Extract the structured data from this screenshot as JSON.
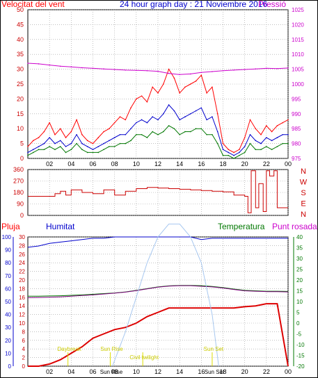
{
  "header": {
    "wind_label": "Velocitat del vent",
    "title": "24 hour graph day : 21 Noviembre 2016",
    "pressure_label": "Pressió"
  },
  "lower_header": {
    "rain_label": "Pluja",
    "humidity_label": "Humitat",
    "temperature_label": "Temperatura",
    "dewpoint_label": "Punt rosada"
  },
  "colors": {
    "wind": "#ff0000",
    "wind_avg": "#0000cc",
    "wind_low": "#007700",
    "pressure": "#cc00cc",
    "direction": "#cc0000",
    "humidity": "#0000cc",
    "temperature": "#007700",
    "dewpoint": "#800080",
    "rain": "#dd0000",
    "solar": "#a8c8f0",
    "annotations": "#dddd00"
  },
  "chart_data": [
    {
      "type": "line",
      "title": "24 hour graph day : 21 Noviembre 2016",
      "x_ticks": [
        "02",
        "04",
        "06",
        "08",
        "10",
        "12",
        "14",
        "16",
        "18",
        "20",
        "22",
        "00"
      ],
      "x_range": [
        0,
        24
      ],
      "y_left_ticks": [
        "0",
        "5",
        "10",
        "15",
        "20",
        "25",
        "30",
        "35",
        "40",
        "45",
        "50"
      ],
      "y_left_range": [
        0,
        50
      ],
      "y_left_label": "Velocitat del vent",
      "y_right_ticks": [
        "975",
        "980",
        "985",
        "990",
        "995",
        "1000",
        "1005",
        "1010",
        "1015",
        "1020",
        "1025"
      ],
      "y_right_range": [
        975,
        1025
      ],
      "y_right_label": "Pressió",
      "grid": true,
      "series": [
        {
          "name": "Velocitat del vent (ratxa)",
          "x": [
            0,
            0.5,
            1,
            1.5,
            2,
            2.5,
            3,
            3.5,
            4,
            4.5,
            5,
            5.5,
            6,
            6.5,
            7,
            7.5,
            8,
            8.5,
            9,
            9.5,
            10,
            10.5,
            11,
            11.5,
            12,
            12.5,
            13,
            13.5,
            14,
            14.5,
            15,
            15.5,
            16,
            16.5,
            17,
            17.5,
            18,
            18.5,
            19,
            19.5,
            20,
            20.5,
            21,
            21.5,
            22,
            22.5,
            23,
            23.5,
            24
          ],
          "values": [
            4,
            6,
            7,
            9,
            12,
            8,
            10,
            7,
            9,
            13,
            8,
            6,
            5,
            7,
            9,
            10,
            12,
            14,
            13,
            17,
            20,
            21,
            19,
            24,
            22,
            25,
            30,
            27,
            22,
            24,
            25,
            26,
            28,
            22,
            24,
            15,
            5,
            3,
            2,
            3,
            7,
            13,
            10,
            8,
            11,
            9,
            11,
            12,
            13
          ]
        },
        {
          "name": "Velocitat del vent (mitjana)",
          "x": [
            0,
            0.5,
            1,
            1.5,
            2,
            2.5,
            3,
            3.5,
            4,
            4.5,
            5,
            5.5,
            6,
            6.5,
            7,
            7.5,
            8,
            8.5,
            9,
            9.5,
            10,
            10.5,
            11,
            11.5,
            12,
            12.5,
            13,
            13.5,
            14,
            14.5,
            15,
            15.5,
            16,
            16.5,
            17,
            17.5,
            18,
            18.5,
            19,
            19.5,
            20,
            20.5,
            21,
            21.5,
            22,
            22.5,
            23,
            23.5,
            24
          ],
          "values": [
            2,
            3,
            4,
            5,
            7,
            5,
            6,
            4,
            5,
            8,
            5,
            4,
            3,
            4,
            5,
            6,
            7,
            8,
            8,
            10,
            12,
            13,
            12,
            14,
            13,
            15,
            18,
            16,
            13,
            14,
            15,
            16,
            17,
            13,
            14,
            9,
            3,
            2,
            1,
            2,
            4,
            8,
            6,
            5,
            7,
            6,
            7,
            8,
            8
          ]
        },
        {
          "name": "Velocitat del vent (mínima)",
          "x": [
            0,
            0.5,
            1,
            1.5,
            2,
            2.5,
            3,
            3.5,
            4,
            4.5,
            5,
            5.5,
            6,
            6.5,
            7,
            7.5,
            8,
            8.5,
            9,
            9.5,
            10,
            10.5,
            11,
            11.5,
            12,
            12.5,
            13,
            13.5,
            14,
            14.5,
            15,
            15.5,
            16,
            16.5,
            17,
            17.5,
            18,
            18.5,
            19,
            19.5,
            20,
            20.5,
            21,
            21.5,
            22,
            22.5,
            23,
            23.5,
            24
          ],
          "values": [
            1,
            2,
            3,
            3,
            4,
            3,
            4,
            2,
            3,
            5,
            3,
            2,
            2,
            2,
            3,
            4,
            4,
            5,
            5,
            6,
            8,
            8,
            7,
            9,
            8,
            9,
            11,
            10,
            8,
            9,
            9,
            10,
            10,
            8,
            8,
            5,
            1,
            1,
            0,
            1,
            2,
            5,
            3,
            3,
            4,
            3,
            4,
            5,
            5
          ]
        },
        {
          "name": "Pressió",
          "axis": "right",
          "x": [
            0,
            1,
            2,
            3,
            4,
            5,
            6,
            7,
            8,
            9,
            10,
            11,
            12,
            13,
            14,
            15,
            16,
            17,
            18,
            19,
            20,
            21,
            22,
            23,
            24
          ],
          "values": [
            1007,
            1006.8,
            1006.4,
            1006,
            1005.8,
            1005.5,
            1005.3,
            1005.1,
            1004.9,
            1004.7,
            1004.6,
            1004.5,
            1004.3,
            1003.6,
            1003.2,
            1003.4,
            1003.9,
            1004.2,
            1004.5,
            1004.7,
            1004.9,
            1005.1,
            1005.3,
            1005.2,
            1005.4
          ]
        }
      ]
    },
    {
      "type": "line",
      "x_ticks": [
        "02",
        "04",
        "06",
        "08",
        "10",
        "12",
        "14",
        "16",
        "18",
        "20",
        "22",
        "00"
      ],
      "x_range": [
        0,
        24
      ],
      "y_left_ticks": [
        "0",
        "90",
        "180",
        "270",
        "360"
      ],
      "y_left_range": [
        0,
        360
      ],
      "y_right_ticks": [
        "N",
        "W",
        "S",
        "E",
        "N"
      ],
      "grid": true,
      "series": [
        {
          "name": "Direcció del vent",
          "x": [
            0,
            1,
            2,
            2.5,
            3,
            3.5,
            4,
            5,
            6,
            7,
            8,
            9,
            10,
            11,
            12,
            13,
            14,
            15,
            16,
            17,
            18,
            19,
            20,
            20.3,
            20.6,
            21,
            21.3,
            21.7,
            22,
            22.3,
            22.7,
            23,
            24
          ],
          "values": [
            150,
            150,
            150,
            170,
            190,
            160,
            200,
            180,
            170,
            200,
            160,
            190,
            210,
            220,
            215,
            210,
            205,
            200,
            195,
            190,
            185,
            160,
            150,
            20,
            350,
            60,
            250,
            30,
            350,
            310,
            350,
            60,
            60
          ]
        }
      ]
    },
    {
      "type": "line",
      "x_ticks": [
        "02",
        "04",
        "06",
        "08",
        "10",
        "12",
        "14",
        "16",
        "18",
        "20",
        "22",
        "00"
      ],
      "x_range": [
        0,
        24
      ],
      "y_left_ticks": [
        "0",
        "2",
        "4",
        "6",
        "8",
        "10",
        "12",
        "14",
        "16",
        "18",
        "20",
        "22",
        "24",
        "26",
        "28",
        "30"
      ],
      "y_left_range": [
        0,
        30
      ],
      "y_left_label": "Pluja",
      "y_blue_ticks": [
        "0",
        "10",
        "20",
        "30",
        "40",
        "50",
        "60",
        "70",
        "80",
        "90",
        "100"
      ],
      "y_blue_range": [
        0,
        100
      ],
      "y_blue_label": "Humitat",
      "y_right_ticks": [
        "-20",
        "-15",
        "-10",
        "-5",
        "0",
        "5",
        "10",
        "15",
        "20",
        "25",
        "30",
        "35",
        "40"
      ],
      "y_right_range": [
        -20,
        40
      ],
      "y_right_label": "Temperatura",
      "grid": true,
      "series": [
        {
          "name": "Pluja",
          "x": [
            0,
            1,
            2,
            3,
            4,
            5,
            6,
            7,
            8,
            9,
            10,
            11,
            12,
            13,
            14,
            15,
            16,
            17,
            18,
            19,
            20,
            21,
            22,
            23,
            24
          ],
          "values": [
            0,
            0,
            0.5,
            1.5,
            3,
            4.5,
            6.5,
            7.5,
            8.5,
            9,
            10,
            11.5,
            12.5,
            13.5,
            13.5,
            13.5,
            13.5,
            13.5,
            13.5,
            13.5,
            13.8,
            14,
            14.5,
            14.5,
            0
          ]
        },
        {
          "name": "Humitat",
          "x": [
            0,
            1,
            2,
            3,
            4,
            5,
            6,
            7,
            8,
            9,
            10,
            11,
            12,
            13,
            14,
            15,
            16,
            17,
            18,
            19,
            20,
            21,
            22,
            23,
            24
          ],
          "values": [
            92,
            93,
            95,
            96,
            97,
            98,
            99,
            99,
            100,
            100,
            100,
            100,
            100,
            100,
            100,
            100,
            98,
            99,
            99,
            99,
            99,
            99,
            99,
            99,
            99
          ]
        },
        {
          "name": "Temperatura",
          "x": [
            0,
            1,
            2,
            3,
            4,
            5,
            6,
            7,
            8,
            9,
            10,
            11,
            12,
            13,
            14,
            15,
            16,
            17,
            18,
            19,
            20,
            21,
            22,
            23,
            24
          ],
          "values": [
            12.5,
            12.5,
            12.6,
            12.7,
            12.9,
            13.1,
            13.4,
            13.7,
            14.0,
            14.5,
            15.2,
            16.0,
            16.8,
            17.3,
            17.5,
            17.5,
            17.4,
            17.0,
            16.5,
            15.8,
            15.2,
            15.0,
            14.8,
            14.8,
            14.7
          ]
        },
        {
          "name": "Punt rosada",
          "x": [
            0,
            1,
            2,
            3,
            4,
            5,
            6,
            7,
            8,
            9,
            10,
            11,
            12,
            13,
            14,
            15,
            16,
            17,
            18,
            19,
            20,
            21,
            22,
            23,
            24
          ],
          "values": [
            11.8,
            11.9,
            12.0,
            12.2,
            12.5,
            12.8,
            13.1,
            13.5,
            13.9,
            14.4,
            15.1,
            15.9,
            16.7,
            17.2,
            17.4,
            17.4,
            17.1,
            16.8,
            16.3,
            15.6,
            15.0,
            14.8,
            14.6,
            14.6,
            14.5
          ]
        },
        {
          "name": "Radiació solar",
          "x": [
            7.8,
            9,
            10,
            11,
            12,
            13,
            14,
            15,
            16,
            17,
            17.6
          ],
          "values": [
            0,
            8,
            16,
            24,
            30,
            33,
            33,
            30,
            24,
            12,
            0
          ]
        }
      ],
      "annotations": [
        {
          "label": "Daybreak",
          "x": 3.7
        },
        {
          "label": "Sun Rise",
          "x": 7.6
        },
        {
          "label": "Civil twilight",
          "x": 10.6
        },
        {
          "label": "Sun Set",
          "x": 17.0
        }
      ],
      "bottom_labels": [
        "Sun Rise",
        "Sun Set"
      ]
    }
  ]
}
